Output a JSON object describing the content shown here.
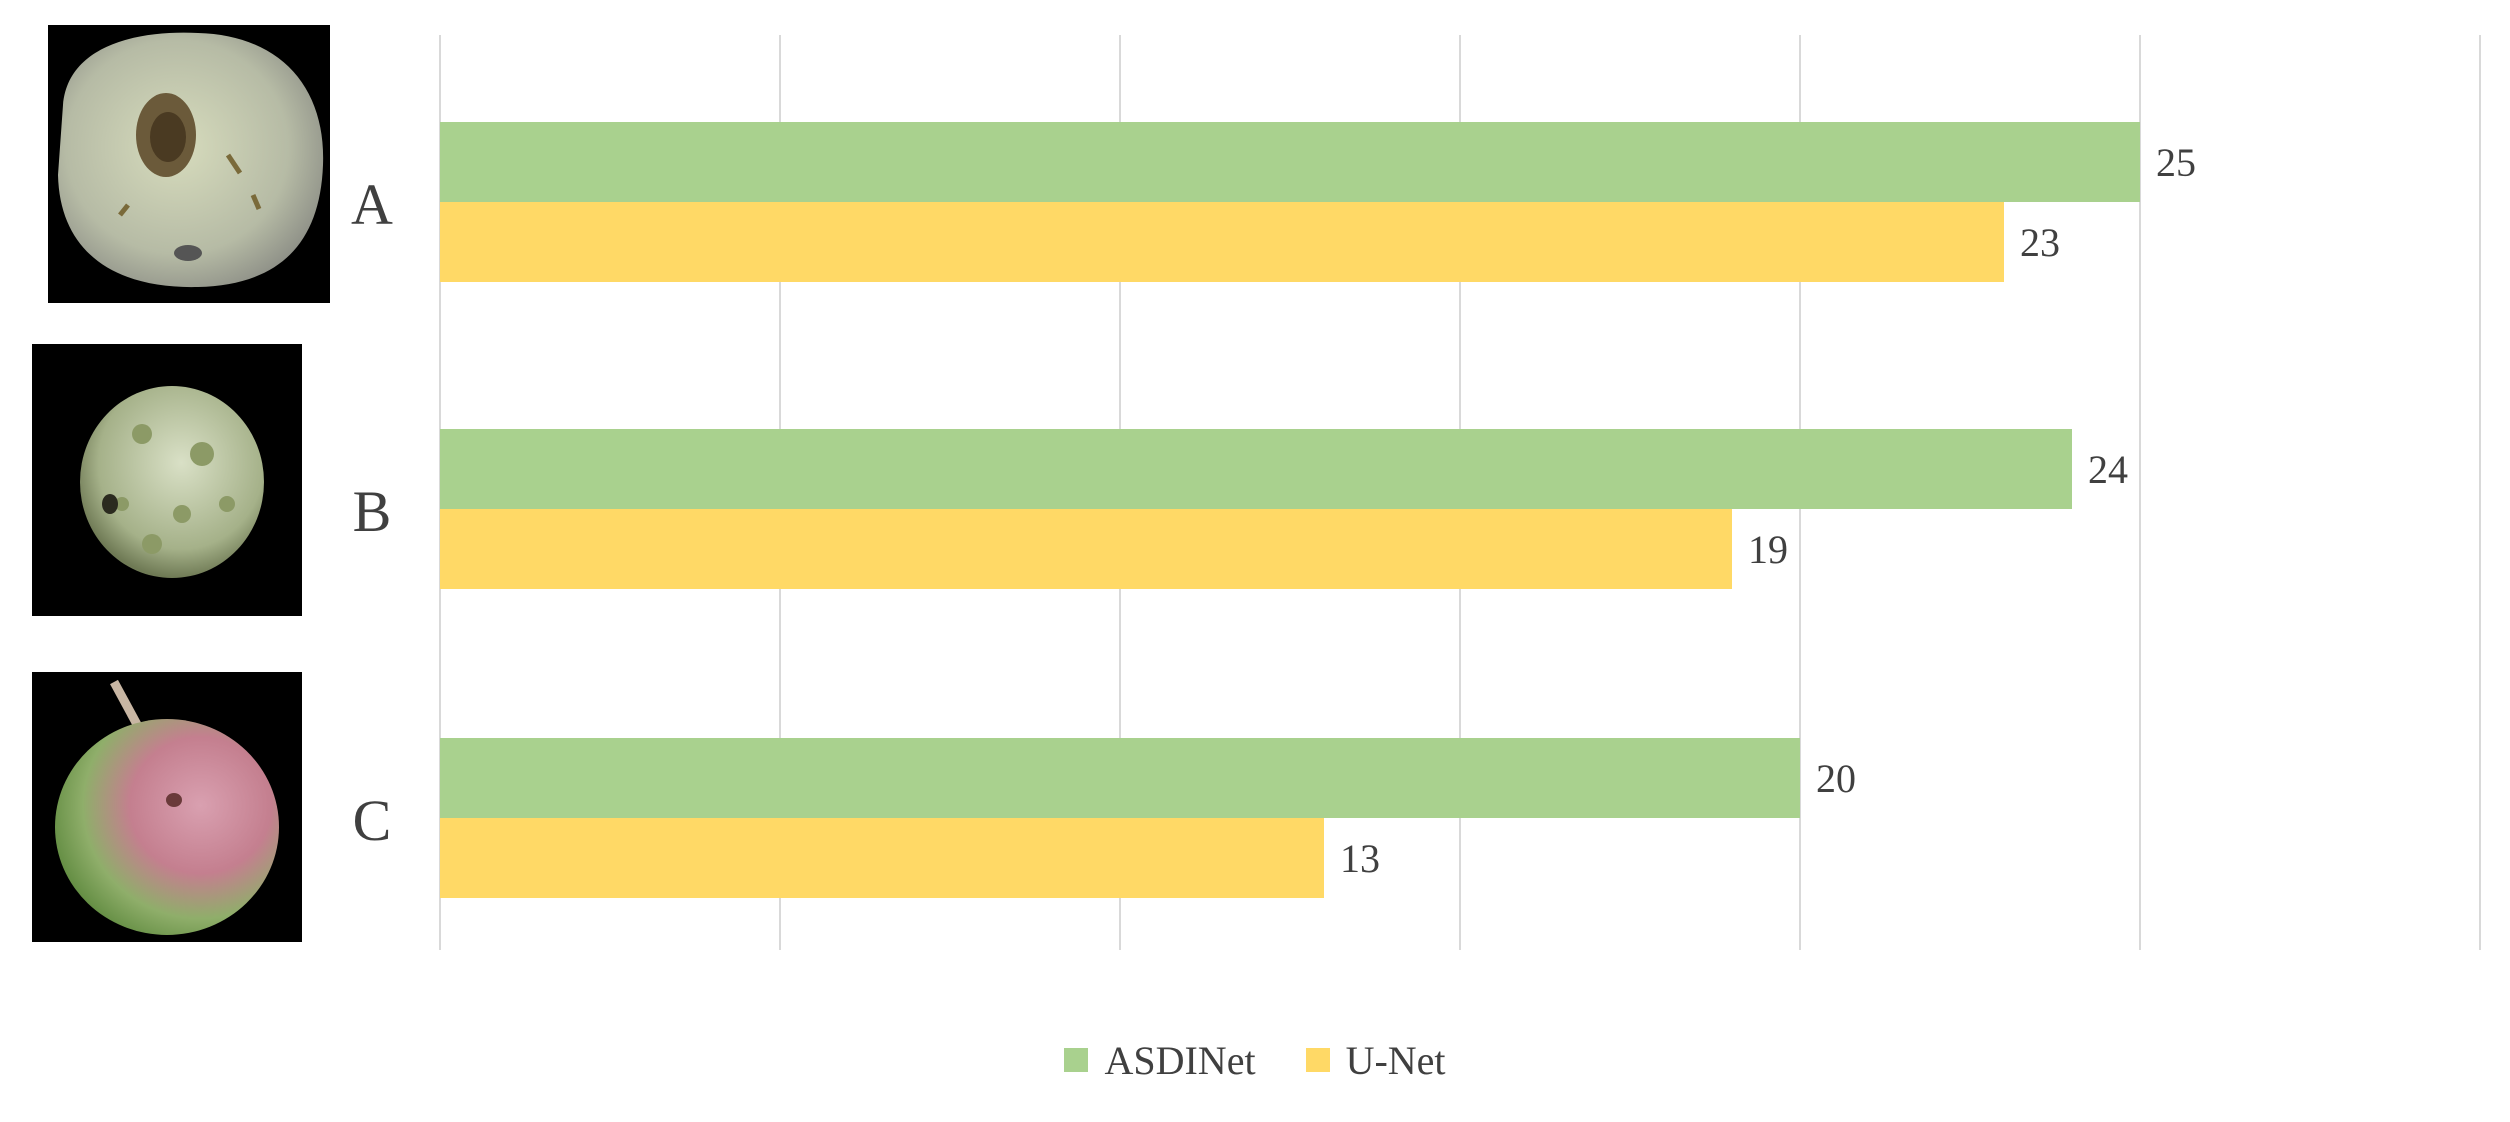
{
  "chart_data": {
    "type": "bar",
    "orientation": "horizontal",
    "categories": [
      "A",
      "B",
      "C"
    ],
    "series": [
      {
        "name": "ASDINet",
        "values": [
          25,
          24,
          20
        ],
        "color": "#A9D18E"
      },
      {
        "name": "U-Net",
        "values": [
          23,
          19,
          13
        ],
        "color": "#FFD966"
      }
    ],
    "xlim": [
      0,
      30
    ],
    "x_ticks": [
      0,
      5,
      10,
      15,
      20,
      25,
      30
    ],
    "grid": true,
    "legend_position": "bottom",
    "data_labels": true,
    "category_images": [
      "apple-with-rot-spot",
      "green-apple-with-scab-spots",
      "red-green-apple-with-stem"
    ]
  }
}
